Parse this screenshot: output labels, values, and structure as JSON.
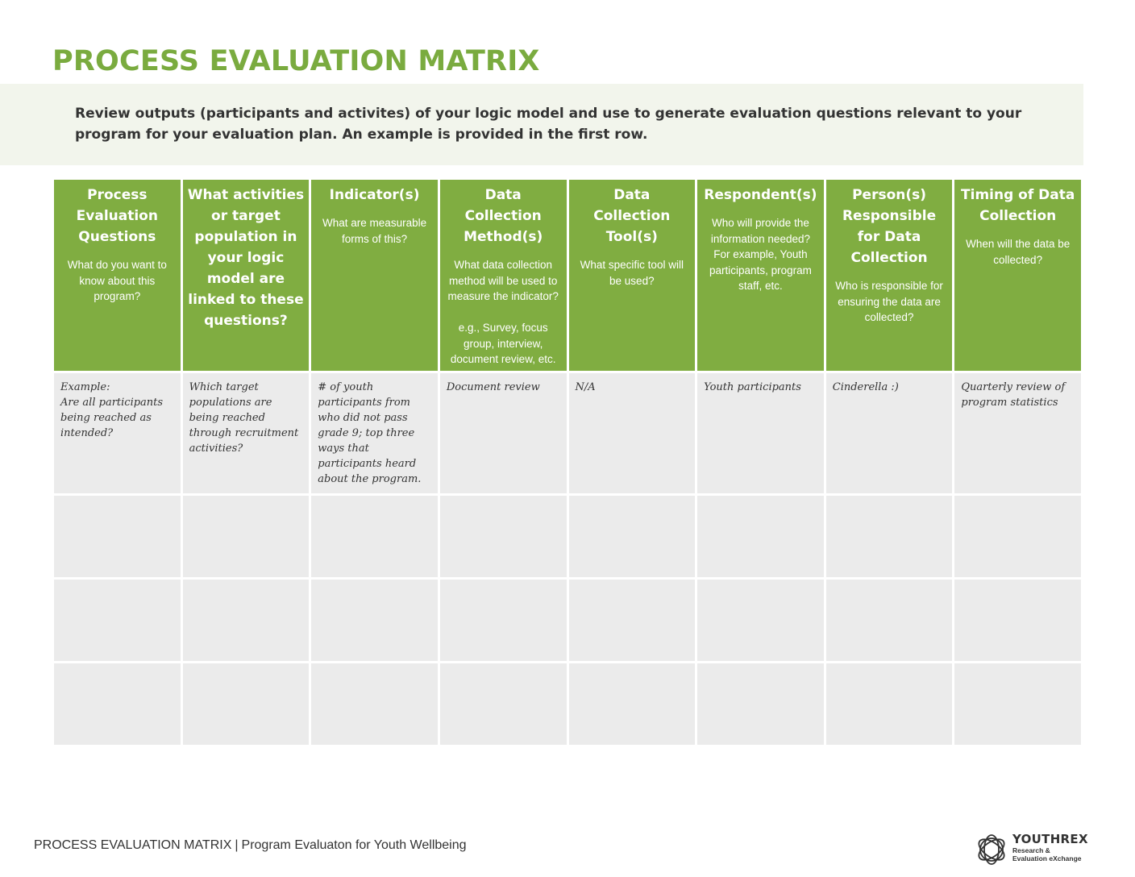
{
  "title": "PROCESS EVALUATION MATRIX",
  "intro": "Review outputs (participants and activites) of your logic model and use to generate evaluation questions relevant to your program for your evaluation plan.  An example is provided in the first row.",
  "table": {
    "headers": [
      {
        "title": "Process Evaluation Questions",
        "sub": "What do you want to know about this program?"
      },
      {
        "title": "What activities or target population in your logic model are linked to these questions?",
        "sub": ""
      },
      {
        "title": "Indicator(s)",
        "sub": "What are measurable forms of this?"
      },
      {
        "title": "Data Collection Method(s)",
        "sub": "What data collection method will be used to measure the indicator?\n\ne.g., Survey, focus group, interview, document review, etc."
      },
      {
        "title": "Data Collection Tool(s)",
        "sub": "What specific tool will be used?"
      },
      {
        "title": "Respondent(s)",
        "sub": "Who will provide the information needed? For example, Youth participants, program staff, etc."
      },
      {
        "title": "Person(s) Responsible for Data Collection",
        "sub": "Who is responsible for ensuring the data are collected?"
      },
      {
        "title": "Timing of Data Collection",
        "sub": "When will the data be collected?"
      }
    ],
    "example_row": [
      "Example:\nAre all participants being reached as intended?",
      "Which target populations are being reached through recruitment activities?",
      "# of youth participants from who did not pass grade 9; top three ways that participants heard about the program.",
      "Document review",
      "N/A",
      "Youth participants",
      "Cinderella :)",
      "Quarterly review of program statistics"
    ],
    "blank_row_count": 3
  },
  "footer": {
    "doc_title": "PROCESS EVALUATION MATRIX",
    "separator": "|",
    "program": "Program Evaluaton for Youth Wellbeing"
  },
  "logo": {
    "name": "YOUTHREX",
    "tagline": "Research &\nEvaluation eXchange",
    "icon": "interlocking-circles-logo-icon"
  },
  "colors": {
    "accent_green": "#7aab3f",
    "header_green": "#80ad41",
    "cell_gray": "#ebebeb",
    "intro_band": "#f2f5ec"
  }
}
